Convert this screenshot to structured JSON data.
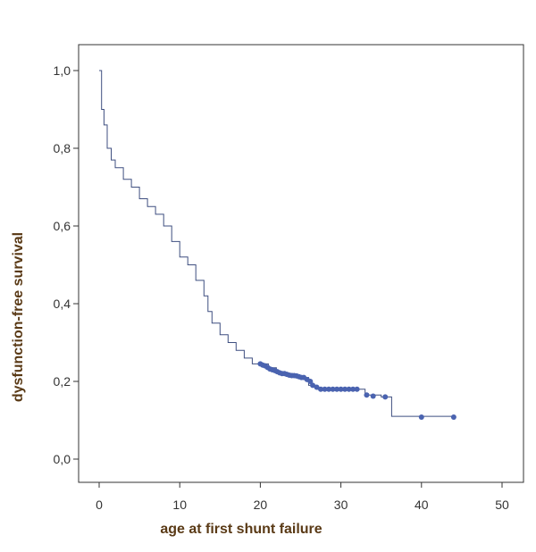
{
  "chart_data": {
    "type": "line",
    "title": "",
    "xlabel": "age at first shunt failure",
    "ylabel": "dysfunction-free survival",
    "xlim": [
      0,
      50
    ],
    "ylim": [
      0,
      1.0
    ],
    "x_ticks": [
      0,
      10,
      20,
      30,
      40,
      50
    ],
    "x_tick_labels": [
      "0",
      "10",
      "20",
      "30",
      "40",
      "50"
    ],
    "y_ticks": [
      0,
      0.2,
      0.4,
      0.6,
      0.8,
      1.0
    ],
    "y_tick_labels": [
      "0,0",
      "0,2",
      "0,4",
      "0,6",
      "0,8",
      "1,0"
    ],
    "grid": false,
    "legend": "none",
    "colors": {
      "line": "#3f4f80",
      "censor": "#4a63b0",
      "axis": "#333333",
      "label": "#5a3a16"
    },
    "series": [
      {
        "x": [
          0.0,
          0.3,
          0.6,
          1.0,
          1.5,
          2.0,
          3.0,
          4.0,
          5.0,
          6.0,
          7.0,
          8.0,
          9.0,
          10.0,
          11.0,
          12.0,
          13.0,
          13.5,
          14.0,
          15.0,
          16.0,
          17.0,
          18.0,
          19.0,
          20.0,
          21.0,
          22.0,
          23.0,
          24.0,
          25.0,
          26.0,
          27.0,
          28.0,
          30.0,
          32.0,
          33.0,
          35.0,
          36.3,
          40.0,
          44.0
        ],
        "y": [
          1.0,
          0.9,
          0.86,
          0.8,
          0.77,
          0.75,
          0.72,
          0.7,
          0.67,
          0.65,
          0.63,
          0.6,
          0.56,
          0.52,
          0.5,
          0.46,
          0.42,
          0.38,
          0.35,
          0.32,
          0.3,
          0.28,
          0.26,
          0.245,
          0.245,
          0.235,
          0.225,
          0.22,
          0.215,
          0.21,
          0.19,
          0.18,
          0.18,
          0.18,
          0.18,
          0.165,
          0.16,
          0.11,
          0.11,
          0.11
        ]
      }
    ],
    "censor_points": {
      "x": [
        20.0,
        20.3,
        20.6,
        20.9,
        21.2,
        21.5,
        21.8,
        22.1,
        22.4,
        22.7,
        23.0,
        23.3,
        23.6,
        23.9,
        24.2,
        24.5,
        24.8,
        25.1,
        25.4,
        25.8,
        26.2,
        26.5,
        27.0,
        27.5,
        28.0,
        28.5,
        29.0,
        29.5,
        30.0,
        30.5,
        31.0,
        31.5,
        32.0,
        33.2,
        34.0,
        35.5,
        40.0,
        44.0
      ],
      "y": [
        0.245,
        0.242,
        0.24,
        0.236,
        0.232,
        0.23,
        0.228,
        0.225,
        0.222,
        0.22,
        0.22,
        0.218,
        0.216,
        0.215,
        0.215,
        0.214,
        0.212,
        0.21,
        0.21,
        0.205,
        0.2,
        0.19,
        0.185,
        0.18,
        0.18,
        0.18,
        0.18,
        0.18,
        0.18,
        0.18,
        0.18,
        0.18,
        0.18,
        0.165,
        0.162,
        0.16,
        0.108,
        0.108
      ]
    }
  }
}
